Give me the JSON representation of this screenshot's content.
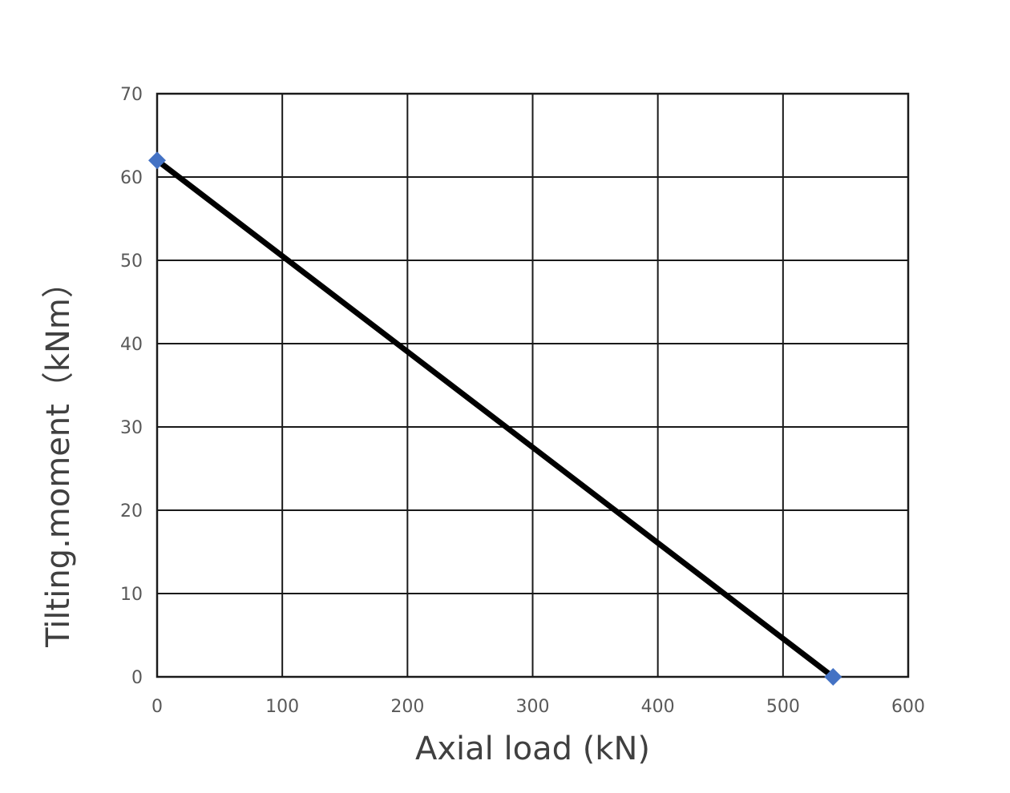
{
  "chart_data": {
    "type": "line",
    "xlabel": "Axial load (kN)",
    "ylabel": "Tilting.moment（kNm）",
    "xlim": [
      0,
      600
    ],
    "ylim": [
      0,
      70
    ],
    "x_ticks": [
      0,
      100,
      200,
      300,
      400,
      500,
      600
    ],
    "y_ticks": [
      0,
      10,
      20,
      30,
      40,
      50,
      60,
      70
    ],
    "grid": true,
    "legend": "none",
    "series": [
      {
        "x": [
          0,
          540
        ],
        "values": [
          62,
          0
        ],
        "line_color": "#000000",
        "marker": "diamond",
        "marker_color": "#4472C4"
      }
    ]
  }
}
